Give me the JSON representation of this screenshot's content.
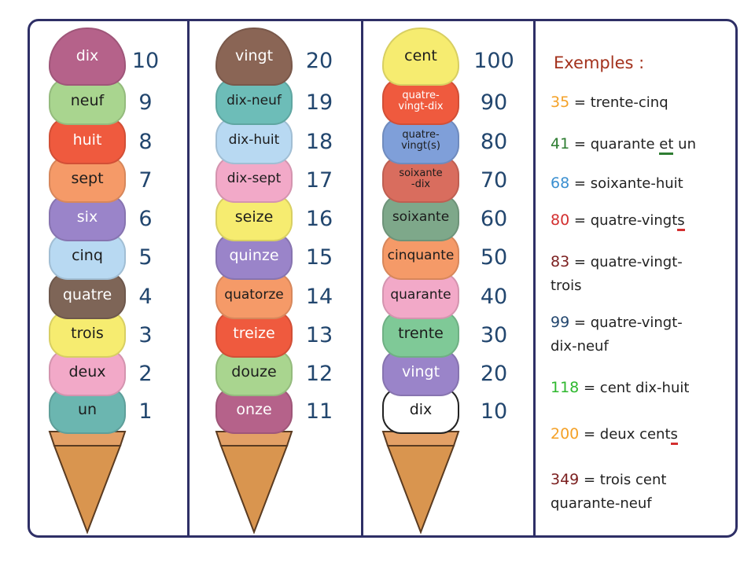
{
  "columns": [
    {
      "scoops": [
        {
          "label": "dix",
          "number": "10",
          "color": "#b5628a"
        },
        {
          "label": "neuf",
          "number": "9",
          "color": "#a9d58f"
        },
        {
          "label": "huit",
          "number": "8",
          "color": "#ef5a3e"
        },
        {
          "label": "sept",
          "number": "7",
          "color": "#f59a68"
        },
        {
          "label": "six",
          "number": "6",
          "color": "#9a84c9"
        },
        {
          "label": "cinq",
          "number": "5",
          "color": "#b8d9f2"
        },
        {
          "label": "quatre",
          "number": "4",
          "color": "#7e6557"
        },
        {
          "label": "trois",
          "number": "3",
          "color": "#f6ec70"
        },
        {
          "label": "deux",
          "number": "2",
          "color": "#f2a9c8"
        },
        {
          "label": "un",
          "number": "1",
          "color": "#6bb6b0"
        }
      ]
    },
    {
      "scoops": [
        {
          "label": "vingt",
          "number": "20",
          "color": "#8a6555"
        },
        {
          "label": "dix-neuf",
          "number": "19",
          "color": "#6dbdb8"
        },
        {
          "label": "dix-huit",
          "number": "18",
          "color": "#b8d9f2"
        },
        {
          "label": "dix-sept",
          "number": "17",
          "color": "#f2a9c8"
        },
        {
          "label": "seize",
          "number": "16",
          "color": "#f6ec70"
        },
        {
          "label": "quinze",
          "number": "15",
          "color": "#9a84c9"
        },
        {
          "label": "quatorze",
          "number": "14",
          "color": "#f59a68"
        },
        {
          "label": "treize",
          "number": "13",
          "color": "#ef5a3e"
        },
        {
          "label": "douze",
          "number": "12",
          "color": "#a9d58f"
        },
        {
          "label": "onze",
          "number": "11",
          "color": "#b5628a"
        }
      ]
    },
    {
      "scoops": [
        {
          "label": "cent",
          "number": "100",
          "color": "#f6ec70"
        },
        {
          "label": "quatre-\nvingt-dix",
          "number": "90",
          "color": "#ef5a3e"
        },
        {
          "label": "quatre-\nvingt(s)",
          "number": "80",
          "color": "#7f9fd9"
        },
        {
          "label": "soixante\n-dix",
          "number": "70",
          "color": "#d96d5e"
        },
        {
          "label": "soixante",
          "number": "60",
          "color": "#7ea88a"
        },
        {
          "label": "cinquante",
          "number": "50",
          "color": "#f59a68"
        },
        {
          "label": "quarante",
          "number": "40",
          "color": "#f2a9c8"
        },
        {
          "label": "trente",
          "number": "30",
          "color": "#7fc997"
        },
        {
          "label": "vingt",
          "number": "20",
          "color": "#9a84c9"
        },
        {
          "label": "dix",
          "number": "10",
          "color": "#ffffff"
        }
      ]
    }
  ],
  "examples": {
    "title": "Exemples :",
    "items": [
      {
        "number": "35",
        "number_color": "#f4a127",
        "parts": [
          {
            "t": "= trente-cinq",
            "u": false
          }
        ]
      },
      {
        "number": "41",
        "number_color": "#2e7d32",
        "parts": [
          {
            "t": "= quarante ",
            "u": false
          },
          {
            "t": "et",
            "u": true,
            "uc": "#2e7d32"
          },
          {
            "t": " un",
            "u": false
          }
        ]
      },
      {
        "number": "68",
        "number_color": "#3a8fd0",
        "parts": [
          {
            "t": "= soixante-huit",
            "u": false
          }
        ]
      },
      {
        "number": "80",
        "number_color": "#d32f2f",
        "parts": [
          {
            "t": "= quatre-vingt",
            "u": false
          },
          {
            "t": "s",
            "u": true,
            "uc": "#d32f2f"
          }
        ]
      },
      {
        "number": "83",
        "number_color": "#7b1f1f",
        "parts": [
          {
            "t": "= quatre-vingt-\ntrois",
            "u": false
          }
        ]
      },
      {
        "number": "99",
        "number_color": "#22466e",
        "parts": [
          {
            "t": "= quatre-vingt-\ndix-neuf",
            "u": false
          }
        ]
      },
      {
        "number": "118",
        "number_color": "#2eb82e",
        "parts": [
          {
            "t": "= cent dix-huit",
            "u": false
          }
        ]
      },
      {
        "number": "200",
        "number_color": "#f4a127",
        "parts": [
          {
            "t": "= deux cent",
            "u": false
          },
          {
            "t": "s",
            "u": true,
            "uc": "#d32f2f"
          }
        ]
      },
      {
        "number": "349",
        "number_color": "#7b1f1f",
        "parts": [
          {
            "t": "= trois cent\nquarante-neuf",
            "u": false
          }
        ]
      }
    ]
  }
}
